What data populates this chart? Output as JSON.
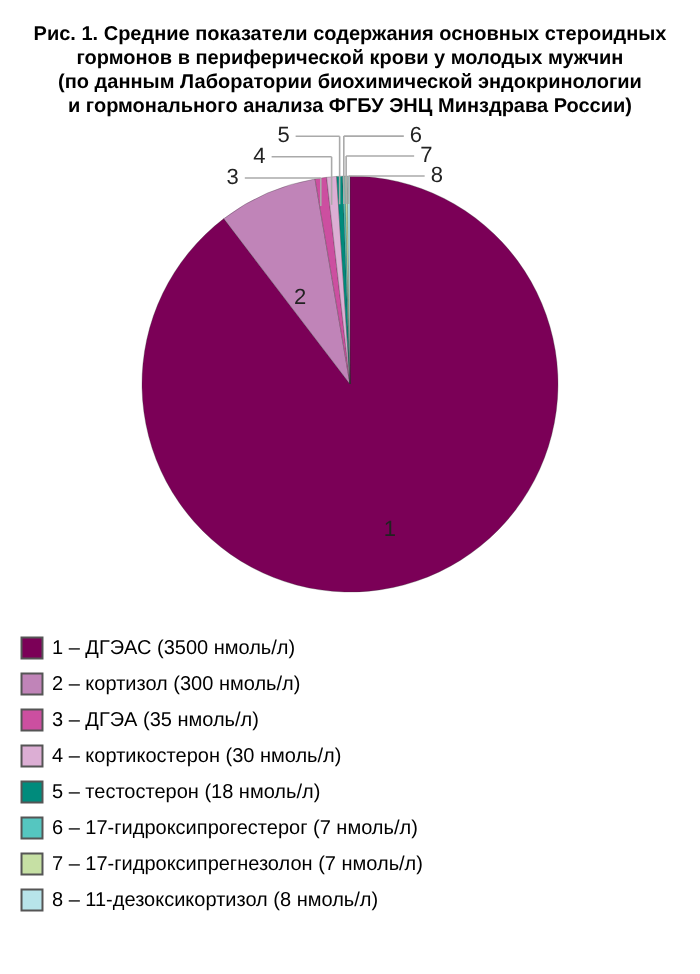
{
  "chart_data": {
    "type": "pie",
    "title": [
      "Рис. 1. Средние показатели содержания основных стероидных",
      "гормонов в периферической крови у молодых мужчин",
      "(по данным Лаборатории биохимической эндокринологии",
      "и гормонального анализа ФГБУ ЭНЦ Минздрава России)"
    ],
    "categories": [
      "1 – ДГЭАС (3500 нмоль/л)",
      "2 – кортизол (300 нмоль/л)",
      "3 – ДГЭА (35 нмоль/л)",
      "4 – кортикостерон (30 нмоль/л)",
      "5 – тестостерон (18 нмоль/л)",
      "6 – 17-гидроксипрогестерог (7 нмоль/л)",
      "7 – 17-гидроксипрегнезолон (7 нмоль/л)",
      "8 – 11-дезоксикортизол (8 нмоль/л)"
    ],
    "values": [
      3500,
      300,
      35,
      30,
      18,
      7,
      7,
      8
    ],
    "colors": [
      "#7b0057",
      "#c084b8",
      "#cc4fa0",
      "#dcaed4",
      "#008b7c",
      "#55c6c0",
      "#c6e0a4",
      "#b8e4ea"
    ],
    "annotations": [
      "1",
      "2",
      "3",
      "4",
      "5",
      "6",
      "7",
      "8"
    ],
    "legend": "bottom"
  }
}
